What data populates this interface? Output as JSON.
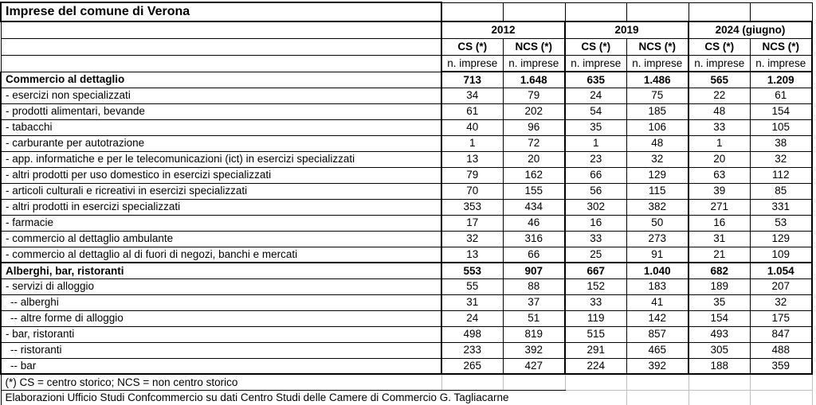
{
  "title": "Imprese del comune di Verona",
  "header": {
    "year_groups": [
      "2012",
      "2019",
      "2024 (giugno)"
    ],
    "sub_headers": [
      "CS (*)",
      "NCS (*)"
    ],
    "unit_label": "n. imprese"
  },
  "rows": [
    {
      "label": "Commercio al dettaglio",
      "bold": true,
      "values": [
        "713",
        "1.648",
        "635",
        "1.486",
        "565",
        "1.209"
      ]
    },
    {
      "label": "- esercizi non specializzati",
      "values": [
        "34",
        "79",
        "24",
        "75",
        "22",
        "61"
      ]
    },
    {
      "label": "- prodotti alimentari, bevande",
      "values": [
        "61",
        "202",
        "54",
        "185",
        "48",
        "154"
      ]
    },
    {
      "label": "- tabacchi",
      "values": [
        "40",
        "96",
        "35",
        "106",
        "33",
        "105"
      ]
    },
    {
      "label": "- carburante per autotrazione",
      "values": [
        "1",
        "72",
        "1",
        "48",
        "1",
        "38"
      ]
    },
    {
      "label": "- app. informatiche e per le telecomunicazioni (ict) in esercizi specializzati",
      "values": [
        "13",
        "20",
        "23",
        "32",
        "20",
        "32"
      ]
    },
    {
      "label": "- altri prodotti per uso domestico in esercizi specializzati",
      "values": [
        "79",
        "162",
        "66",
        "129",
        "63",
        "112"
      ]
    },
    {
      "label": "- articoli culturali e ricreativi in esercizi specializzati",
      "values": [
        "70",
        "155",
        "56",
        "115",
        "39",
        "85"
      ]
    },
    {
      "label": "- altri prodotti in esercizi specializzati",
      "values": [
        "353",
        "434",
        "302",
        "382",
        "271",
        "331"
      ]
    },
    {
      "label": "- farmacie",
      "values": [
        "17",
        "46",
        "16",
        "50",
        "16",
        "53"
      ]
    },
    {
      "label": "- commercio al dettaglio ambulante",
      "values": [
        "32",
        "316",
        "33",
        "273",
        "31",
        "129"
      ]
    },
    {
      "label": "- commercio al dettaglio al di fuori di negozi, banchi e mercati",
      "values": [
        "13",
        "66",
        "25",
        "91",
        "21",
        "109"
      ]
    },
    {
      "label": "Alberghi, bar, ristoranti",
      "bold": true,
      "section_start": true,
      "values": [
        "553",
        "907",
        "667",
        "1.040",
        "682",
        "1.054"
      ]
    },
    {
      "label": "- servizi di alloggio",
      "values": [
        "55",
        "88",
        "152",
        "183",
        "189",
        "207"
      ]
    },
    {
      "label": "-- alberghi",
      "indent": 1,
      "values": [
        "31",
        "37",
        "33",
        "41",
        "35",
        "32"
      ]
    },
    {
      "label": "-- altre forme di alloggio",
      "indent": 1,
      "values": [
        "24",
        "51",
        "119",
        "142",
        "154",
        "175"
      ]
    },
    {
      "label": "- bar, ristoranti",
      "values": [
        "498",
        "819",
        "515",
        "857",
        "493",
        "847"
      ]
    },
    {
      "label": "-- ristoranti",
      "indent": 1,
      "values": [
        "233",
        "392",
        "291",
        "465",
        "305",
        "488"
      ]
    },
    {
      "label": "-- bar",
      "indent": 1,
      "values": [
        "265",
        "427",
        "224",
        "392",
        "188",
        "359"
      ]
    }
  ],
  "footnotes": [
    "(*) CS = centro storico; NCS = non centro storico",
    "Elaborazioni Ufficio Studi Confcommercio su dati Centro Studi delle Camere di Commercio G. Tagliacarne"
  ],
  "colors": {
    "border": "#000000",
    "gridline": "#bfbfbf",
    "background": "#ffffff",
    "text": "#000000"
  }
}
